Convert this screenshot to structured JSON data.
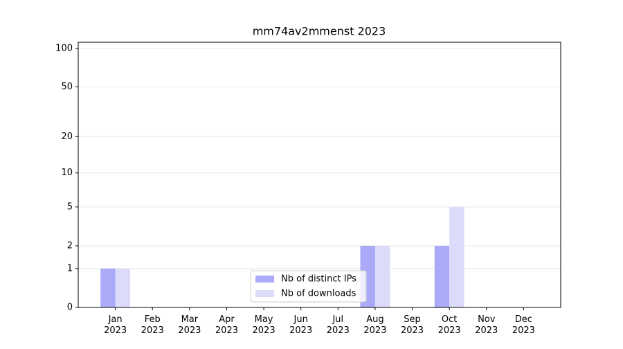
{
  "chart_data": {
    "type": "bar",
    "title": "mm74av2mmenst 2023",
    "categories": [
      "Jan 2023",
      "Feb 2023",
      "Mar 2023",
      "Apr 2023",
      "May 2023",
      "Jun 2023",
      "Jul 2023",
      "Aug 2023",
      "Sep 2023",
      "Oct 2023",
      "Nov 2023",
      "Dec 2023"
    ],
    "series": [
      {
        "name": "Nb of distinct IPs",
        "color": "#aaaaf8",
        "values": [
          1,
          0,
          0,
          0,
          0,
          0,
          0,
          2,
          0,
          2,
          0,
          0
        ]
      },
      {
        "name": "Nb of downloads",
        "color": "#dcdcfa",
        "values": [
          1,
          0,
          0,
          0,
          0,
          0,
          0,
          2,
          0,
          5,
          0,
          0
        ]
      }
    ],
    "yscale": "log1p",
    "ylim": [
      0,
      112
    ],
    "yticks": [
      0,
      1,
      2,
      5,
      10,
      20,
      50,
      100
    ],
    "grid": true,
    "legend": "lower center"
  }
}
